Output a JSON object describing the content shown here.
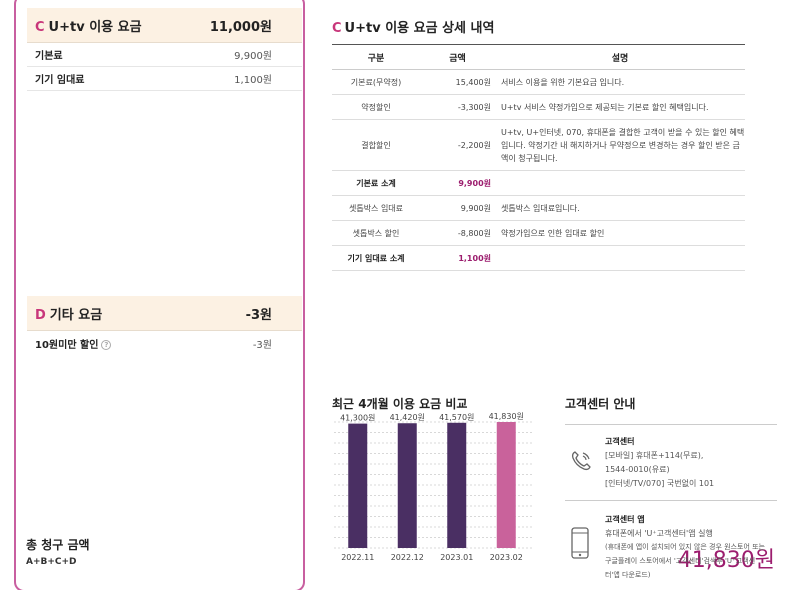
{
  "summary": {
    "c_section": {
      "letter": "C",
      "title": "U+tv 이용 요금",
      "amount": "11,000원",
      "items": [
        {
          "label": "기본료",
          "value": "9,900원"
        },
        {
          "label": "기기 임대료",
          "value": "1,100원"
        }
      ]
    },
    "d_section": {
      "letter": "D",
      "title": "기타 요금",
      "amount": "-3원",
      "items": [
        {
          "label": "10원미만 할인",
          "value": "-3원"
        }
      ]
    },
    "total": {
      "label": "총 청구 금액",
      "formula": "A+B+C+D",
      "amount": "41,830원"
    }
  },
  "detail": {
    "letter": "C",
    "title": "U+tv 이용 요금 상세 내역",
    "headers": [
      "구분",
      "금액",
      "설명"
    ],
    "rows": [
      {
        "type": "기본료(무약정)",
        "amount": "15,400원",
        "desc": "서비스 이용을 위한 기본요금 입니다."
      },
      {
        "type": "약정할인",
        "amount": "-3,300원",
        "desc": "U+tv 서비스 약정가입으로 제공되는 기본료 할인 혜택입니다."
      },
      {
        "type": "결합할인",
        "amount": "-2,200원",
        "desc": "U+tv, U+인터넷, 070, 휴대폰을 결합한 고객이 받을 수 있는 할인 혜택입니다. 약정기간 내 해지하거나 무약정으로 변경하는 경우 할인 받은 금액이 청구됩니다."
      },
      {
        "type": "기본료 소계",
        "amount": "9,900원",
        "desc": "",
        "subtotal": true
      },
      {
        "type": "셋톱박스 임대료",
        "amount": "9,900원",
        "desc": "셋톱박스 임대료입니다."
      },
      {
        "type": "셋톱박스 할인",
        "amount": "-8,800원",
        "desc": "약정가입으로 인한 임대료 할인"
      },
      {
        "type": "기기 임대료 소계",
        "amount": "1,100원",
        "desc": "",
        "subtotal": true
      }
    ]
  },
  "chart": {
    "title": "최근 4개월 이용 요금 비교",
    "colors": {
      "normal": "#4a2f63",
      "current": "#c9629b",
      "grid": "#d8d8d8"
    }
  },
  "chart_data": {
    "type": "bar",
    "title": "최근 4개월 이용 요금 비교",
    "categories": [
      "2022.11",
      "2022.12",
      "2023.01",
      "2023.02"
    ],
    "values": [
      41300,
      41420,
      41570,
      41830
    ],
    "value_labels": [
      "41,300원",
      "41,420원",
      "41,570원",
      "41,830원"
    ],
    "highlight_index": 3,
    "grid": true,
    "xlabel": "",
    "ylabel": ""
  },
  "customer_center": {
    "title": "고객센터 안내",
    "blocks": [
      {
        "icon": "phone-icon",
        "name": "고객센터",
        "lines": [
          "[모바일] 휴대폰+114(무료),",
          "1544-0010(유료)",
          "[인터넷/TV/070] 국번없이 101"
        ]
      },
      {
        "icon": "smartphone-icon",
        "name": "고객센터 앱",
        "lines": [
          "휴대폰에서 'U⁺고객센터'앱 실행",
          "(휴대폰에 앱이 설치되어 있지 않은 경우 원스토어 또는",
          "구글플레이 스토어에서 '고객센터'검색후 'U⁺고객센",
          "터'앱 다운로드)"
        ]
      }
    ]
  }
}
